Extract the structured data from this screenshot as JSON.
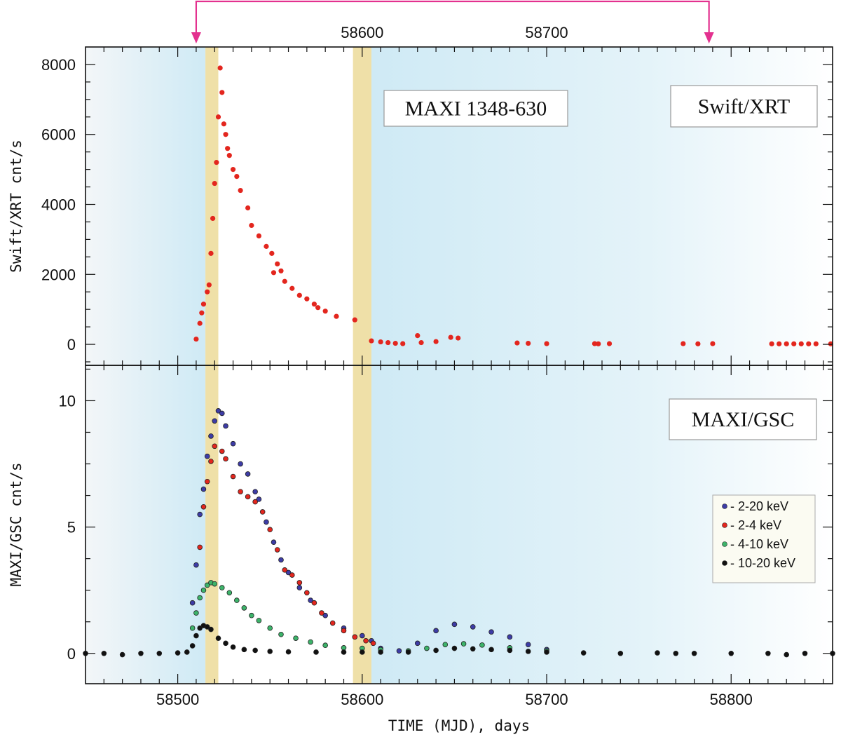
{
  "chart_data": {
    "type": "scatter",
    "x_axis": {
      "label": "TIME (MJD), days",
      "range": [
        58450,
        58855
      ],
      "ticks_bottom": [
        58500,
        58600,
        58700,
        58800
      ],
      "ticks_top": [
        58600,
        58700
      ]
    },
    "bracket": {
      "x_start": 58510,
      "x_end": 58788,
      "color": "#e3318f"
    },
    "shading": {
      "blue_regions": [
        [
          58450,
          58515
        ],
        [
          58605,
          58855
        ]
      ],
      "yellow_bands": [
        [
          58515,
          58522
        ],
        [
          58595,
          58605
        ]
      ],
      "colors": {
        "blue": "#d2ecf6",
        "yellow": "#efe0a8"
      }
    },
    "panels": [
      {
        "name": "Swift/XRT",
        "ylabel": "Swift/XRT cnt/s",
        "ylim": [
          -600,
          8500
        ],
        "yticks": [
          0,
          2000,
          4000,
          6000,
          8000
        ],
        "boxes": [
          "MAXI 1348-630",
          "Swift/XRT"
        ],
        "series": [
          {
            "name": "Swift/XRT",
            "color": "#e3261e",
            "points": [
              [
                58510,
                150
              ],
              [
                58512,
                600
              ],
              [
                58513,
                900
              ],
              [
                58514,
                1150
              ],
              [
                58516,
                1500
              ],
              [
                58517,
                1700
              ],
              [
                58518,
                2600
              ],
              [
                58519,
                3600
              ],
              [
                58520,
                4600
              ],
              [
                58521,
                5200
              ],
              [
                58522,
                6500
              ],
              [
                58523,
                7900
              ],
              [
                58524,
                7200
              ],
              [
                58525,
                6300
              ],
              [
                58526,
                6000
              ],
              [
                58527,
                5600
              ],
              [
                58528,
                5400
              ],
              [
                58530,
                5000
              ],
              [
                58532,
                4800
              ],
              [
                58534,
                4400
              ],
              [
                58538,
                3900
              ],
              [
                58540,
                3400
              ],
              [
                58544,
                3100
              ],
              [
                58548,
                2800
              ],
              [
                58551,
                2600
              ],
              [
                58552,
                2050
              ],
              [
                58554,
                2300
              ],
              [
                58556,
                2100
              ],
              [
                58558,
                1800
              ],
              [
                58562,
                1600
              ],
              [
                58566,
                1400
              ],
              [
                58570,
                1300
              ],
              [
                58574,
                1150
              ],
              [
                58576,
                1050
              ],
              [
                58580,
                950
              ],
              [
                58586,
                800
              ],
              [
                58596,
                700
              ],
              [
                58605,
                100
              ],
              [
                58610,
                70
              ],
              [
                58614,
                50
              ],
              [
                58618,
                30
              ],
              [
                58622,
                20
              ],
              [
                58630,
                250
              ],
              [
                58632,
                50
              ],
              [
                58640,
                80
              ],
              [
                58648,
                200
              ],
              [
                58652,
                180
              ],
              [
                58684,
                40
              ],
              [
                58690,
                30
              ],
              [
                58700,
                20
              ],
              [
                58726,
                20
              ],
              [
                58728,
                15
              ],
              [
                58734,
                20
              ],
              [
                58774,
                20
              ],
              [
                58782,
                15
              ],
              [
                58790,
                20
              ],
              [
                58822,
                15
              ],
              [
                58826,
                15
              ],
              [
                58830,
                15
              ],
              [
                58834,
                15
              ],
              [
                58838,
                15
              ],
              [
                58842,
                15
              ],
              [
                58846,
                15
              ],
              [
                58854,
                15
              ]
            ]
          }
        ]
      },
      {
        "name": "MAXI/GSC",
        "ylabel": "MAXI/GSC cnt/s",
        "ylim": [
          -1.2,
          11.4
        ],
        "yticks": [
          0,
          5,
          10
        ],
        "boxes": [
          "MAXI/GSC"
        ],
        "series": [
          {
            "name": "- 2-20 keV",
            "color": "#3d3ca6",
            "points": [
              [
                58508,
                2
              ],
              [
                58510,
                3.5
              ],
              [
                58512,
                5.5
              ],
              [
                58514,
                6.5
              ],
              [
                58516,
                7.8
              ],
              [
                58518,
                8.6
              ],
              [
                58520,
                9.2
              ],
              [
                58522,
                9.6
              ],
              [
                58524,
                9.5
              ],
              [
                58526,
                9
              ],
              [
                58530,
                8.3
              ],
              [
                58534,
                7.5
              ],
              [
                58538,
                7.1
              ],
              [
                58542,
                6.4
              ],
              [
                58544,
                6.1
              ],
              [
                58548,
                5.2
              ],
              [
                58552,
                4.4
              ],
              [
                58556,
                3.7
              ],
              [
                58560,
                3.2
              ],
              [
                58566,
                2.6
              ],
              [
                58572,
                2.1
              ],
              [
                58580,
                1.5
              ],
              [
                58590,
                1
              ],
              [
                58600,
                0.7
              ],
              [
                58605,
                0.5
              ],
              [
                58610,
                0.2
              ],
              [
                58620,
                0.1
              ],
              [
                58630,
                0.4
              ],
              [
                58640,
                0.9
              ],
              [
                58650,
                1.15
              ],
              [
                58660,
                1.05
              ],
              [
                58670,
                0.85
              ],
              [
                58680,
                0.65
              ],
              [
                58690,
                0.35
              ],
              [
                58700,
                0.15
              ]
            ]
          },
          {
            "name": "- 2-4 keV",
            "color": "#e3261e",
            "points": [
              [
                58512,
                4.2
              ],
              [
                58514,
                5.8
              ],
              [
                58516,
                6.8
              ],
              [
                58518,
                7.6
              ],
              [
                58520,
                8.2
              ],
              [
                58524,
                8.0
              ],
              [
                58526,
                7.7
              ],
              [
                58530,
                7.0
              ],
              [
                58534,
                6.4
              ],
              [
                58538,
                6.2
              ],
              [
                58542,
                6.0
              ],
              [
                58546,
                5.6
              ],
              [
                58550,
                4.9
              ],
              [
                58554,
                4.1
              ],
              [
                58558,
                3.3
              ],
              [
                58562,
                3.1
              ],
              [
                58566,
                2.8
              ],
              [
                58570,
                2.4
              ],
              [
                58574,
                2.0
              ],
              [
                58578,
                1.6
              ],
              [
                58584,
                1.2
              ],
              [
                58590,
                0.9
              ],
              [
                58596,
                0.65
              ],
              [
                58602,
                0.5
              ],
              [
                58606,
                0.4
              ]
            ]
          },
          {
            "name": "- 4-10 keV",
            "color": "#3db36a",
            "points": [
              [
                58508,
                1
              ],
              [
                58510,
                1.6
              ],
              [
                58512,
                2.2
              ],
              [
                58514,
                2.5
              ],
              [
                58516,
                2.7
              ],
              [
                58518,
                2.8
              ],
              [
                58520,
                2.75
              ],
              [
                58524,
                2.6
              ],
              [
                58528,
                2.4
              ],
              [
                58532,
                2.1
              ],
              [
                58536,
                1.8
              ],
              [
                58540,
                1.5
              ],
              [
                58544,
                1.3
              ],
              [
                58550,
                1.0
              ],
              [
                58556,
                0.75
              ],
              [
                58564,
                0.6
              ],
              [
                58572,
                0.45
              ],
              [
                58580,
                0.32
              ],
              [
                58590,
                0.22
              ],
              [
                58600,
                0.2
              ],
              [
                58610,
                0.15
              ],
              [
                58625,
                0.1
              ],
              [
                58635,
                0.2
              ],
              [
                58645,
                0.35
              ],
              [
                58655,
                0.38
              ],
              [
                58665,
                0.33
              ],
              [
                58680,
                0.22
              ],
              [
                58700,
                0.1
              ]
            ]
          },
          {
            "name": "- 10-20 keV",
            "color": "#111111",
            "points": [
              [
                58450,
                0
              ],
              [
                58460,
                0
              ],
              [
                58470,
                -0.05
              ],
              [
                58480,
                0
              ],
              [
                58490,
                0
              ],
              [
                58500,
                0.02
              ],
              [
                58505,
                0.05
              ],
              [
                58508,
                0.3
              ],
              [
                58510,
                0.7
              ],
              [
                58512,
                1.0
              ],
              [
                58514,
                1.1
              ],
              [
                58516,
                1.05
              ],
              [
                58518,
                0.95
              ],
              [
                58522,
                0.6
              ],
              [
                58526,
                0.4
              ],
              [
                58530,
                0.25
              ],
              [
                58536,
                0.15
              ],
              [
                58542,
                0.12
              ],
              [
                58550,
                0.08
              ],
              [
                58560,
                0.06
              ],
              [
                58575,
                0.05
              ],
              [
                58590,
                0.05
              ],
              [
                58600,
                0.05
              ],
              [
                58610,
                0.05
              ],
              [
                58625,
                0.05
              ],
              [
                58640,
                0.12
              ],
              [
                58650,
                0.2
              ],
              [
                58660,
                0.18
              ],
              [
                58670,
                0.15
              ],
              [
                58680,
                0.12
              ],
              [
                58690,
                0.08
              ],
              [
                58700,
                0.05
              ],
              [
                58720,
                0.02
              ],
              [
                58740,
                0.0
              ],
              [
                58760,
                0.02
              ],
              [
                58770,
                0.0
              ],
              [
                58780,
                0.0
              ],
              [
                58800,
                0.0
              ],
              [
                58820,
                0.0
              ],
              [
                58830,
                -0.05
              ],
              [
                58840,
                0.0
              ],
              [
                58855,
                0.0
              ]
            ]
          }
        ]
      }
    ]
  }
}
